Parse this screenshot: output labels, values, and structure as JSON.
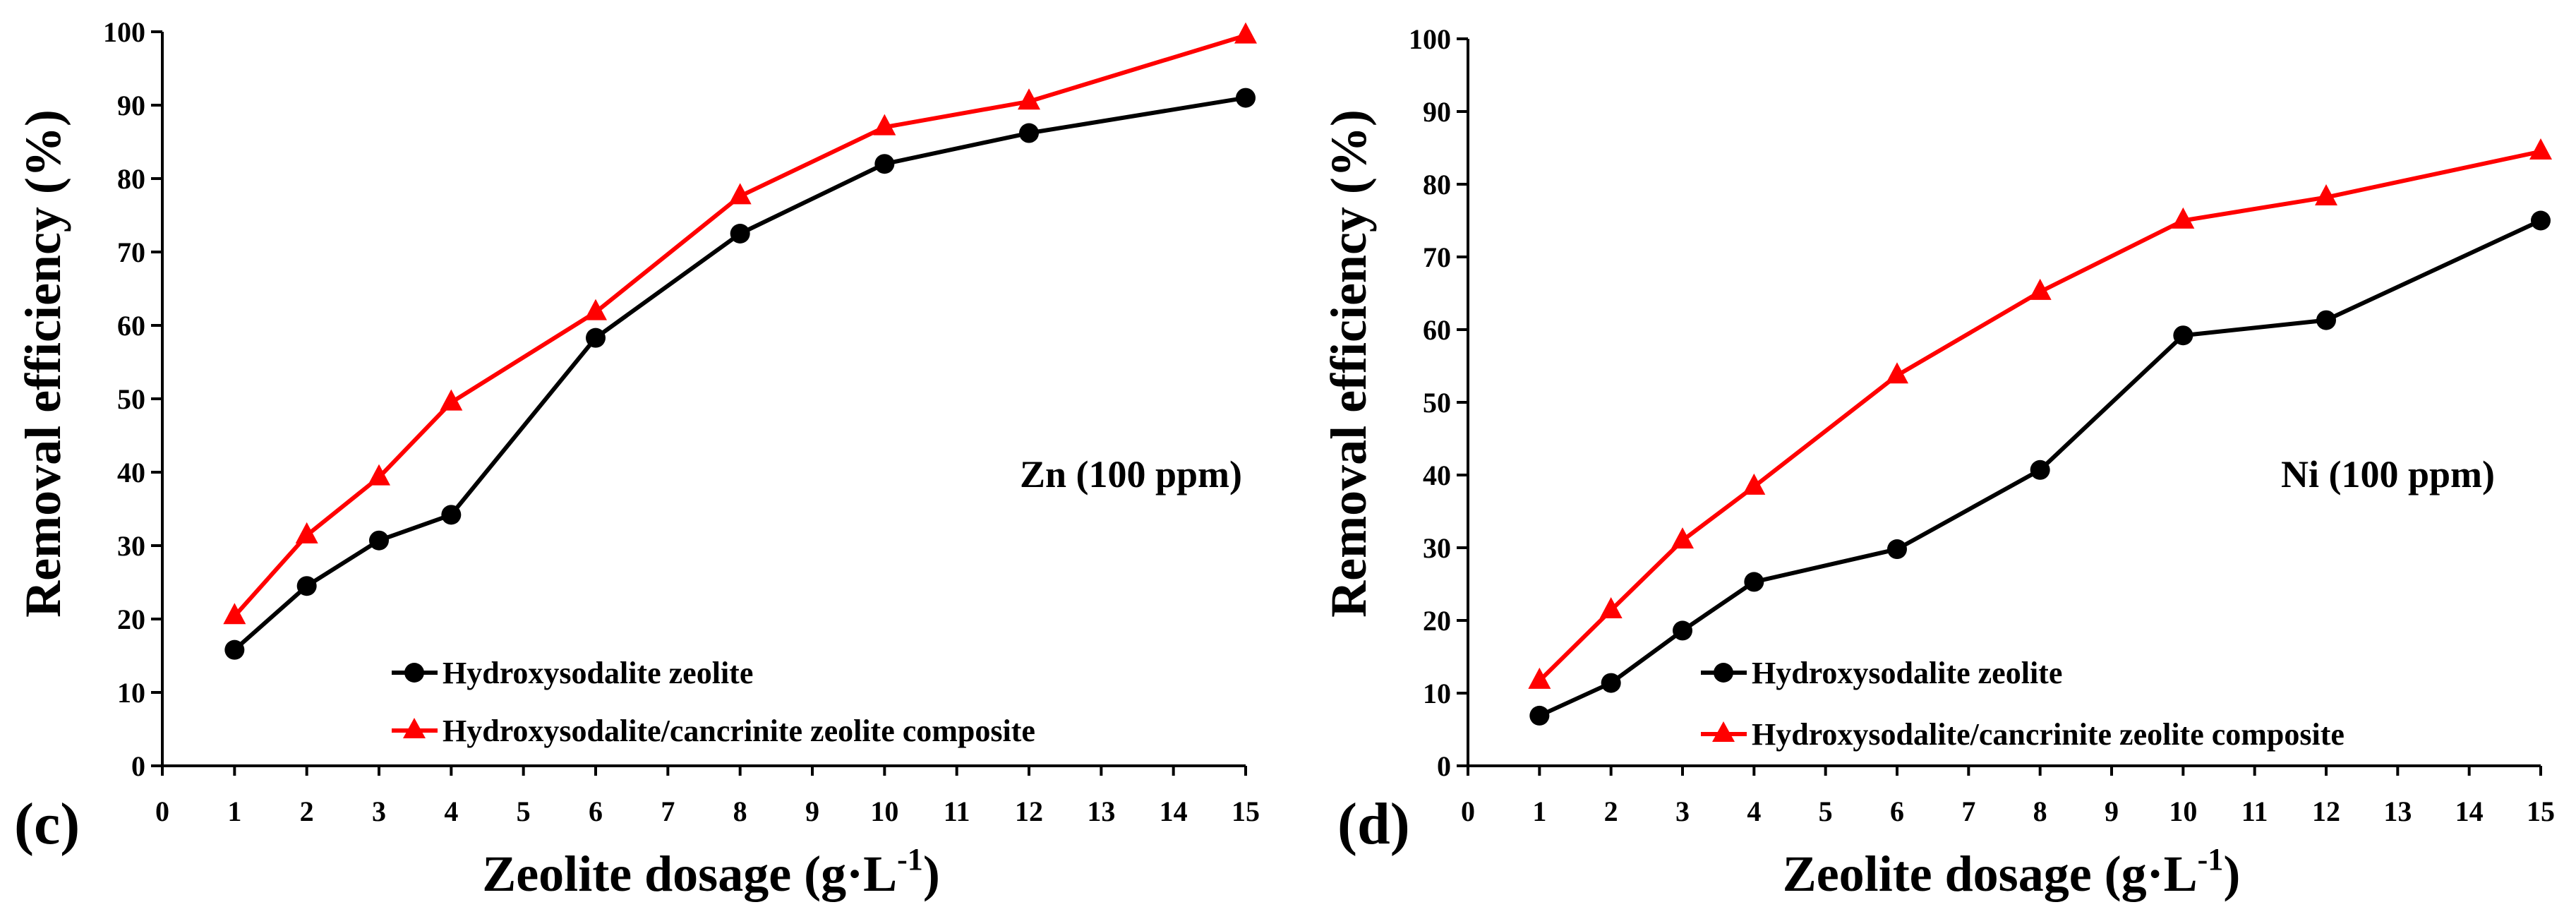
{
  "chart_data": [
    {
      "type": "line",
      "panel_label": "(c)",
      "annotation": "Zn (100 ppm)",
      "xlabel": "Zeolite dosage (g·L",
      "xlabel_sup": "-1",
      "xlabel_end": ")",
      "ylabel": "Removal efficiency (%)",
      "xlim": [
        0,
        15
      ],
      "ylim": [
        0,
        100
      ],
      "xticks": [
        "0",
        "1",
        "2",
        "3",
        "4",
        "5",
        "6",
        "7",
        "8",
        "9",
        "10",
        "11",
        "12",
        "13",
        "14",
        "15"
      ],
      "yticks": [
        "0",
        "10",
        "20",
        "30",
        "40",
        "50",
        "60",
        "70",
        "80",
        "90",
        "100"
      ],
      "grid": false,
      "legend_position": "bottom-right",
      "x": [
        1,
        2,
        3,
        4,
        6,
        8,
        10,
        12,
        15
      ],
      "series": [
        {
          "name": "Hydroxysodalite zeolite",
          "color": "#000000",
          "marker": "circle",
          "values": [
            15.8,
            24.5,
            30.7,
            34.2,
            58.3,
            72.5,
            82.0,
            86.2,
            91.0
          ]
        },
        {
          "name": "Hydroxysodalite/cancrinite zeolite composite",
          "color": "#ff0000",
          "marker": "triangle",
          "values": [
            20.4,
            31.4,
            39.3,
            49.5,
            61.8,
            77.6,
            87.0,
            90.5,
            99.5
          ]
        }
      ]
    },
    {
      "type": "line",
      "panel_label": "(d)",
      "annotation": "Ni (100 ppm)",
      "xlabel": "Zeolite dosage (g·L",
      "xlabel_sup": "-1",
      "xlabel_end": ")",
      "ylabel": "Removal efficiency (%)",
      "xlim": [
        0,
        15
      ],
      "ylim": [
        0,
        100
      ],
      "xticks": [
        "0",
        "1",
        "2",
        "3",
        "4",
        "5",
        "6",
        "7",
        "8",
        "9",
        "10",
        "11",
        "12",
        "13",
        "14",
        "15"
      ],
      "yticks": [
        "0",
        "10",
        "20",
        "30",
        "40",
        "50",
        "60",
        "70",
        "80",
        "90",
        "100"
      ],
      "grid": false,
      "legend_position": "bottom-right",
      "x": [
        1,
        2,
        3,
        4,
        6,
        8,
        10,
        12,
        15
      ],
      "series": [
        {
          "name": "Hydroxysodalite zeolite",
          "color": "#000000",
          "marker": "circle",
          "values": [
            6.9,
            11.4,
            18.6,
            25.3,
            29.8,
            40.7,
            59.2,
            61.3,
            75.0
          ]
        },
        {
          "name": "Hydroxysodalite/cancrinite zeolite composite",
          "color": "#ff0000",
          "marker": "triangle",
          "values": [
            11.7,
            21.4,
            31.0,
            38.4,
            53.7,
            65.2,
            75.0,
            78.2,
            84.5
          ]
        }
      ]
    }
  ]
}
